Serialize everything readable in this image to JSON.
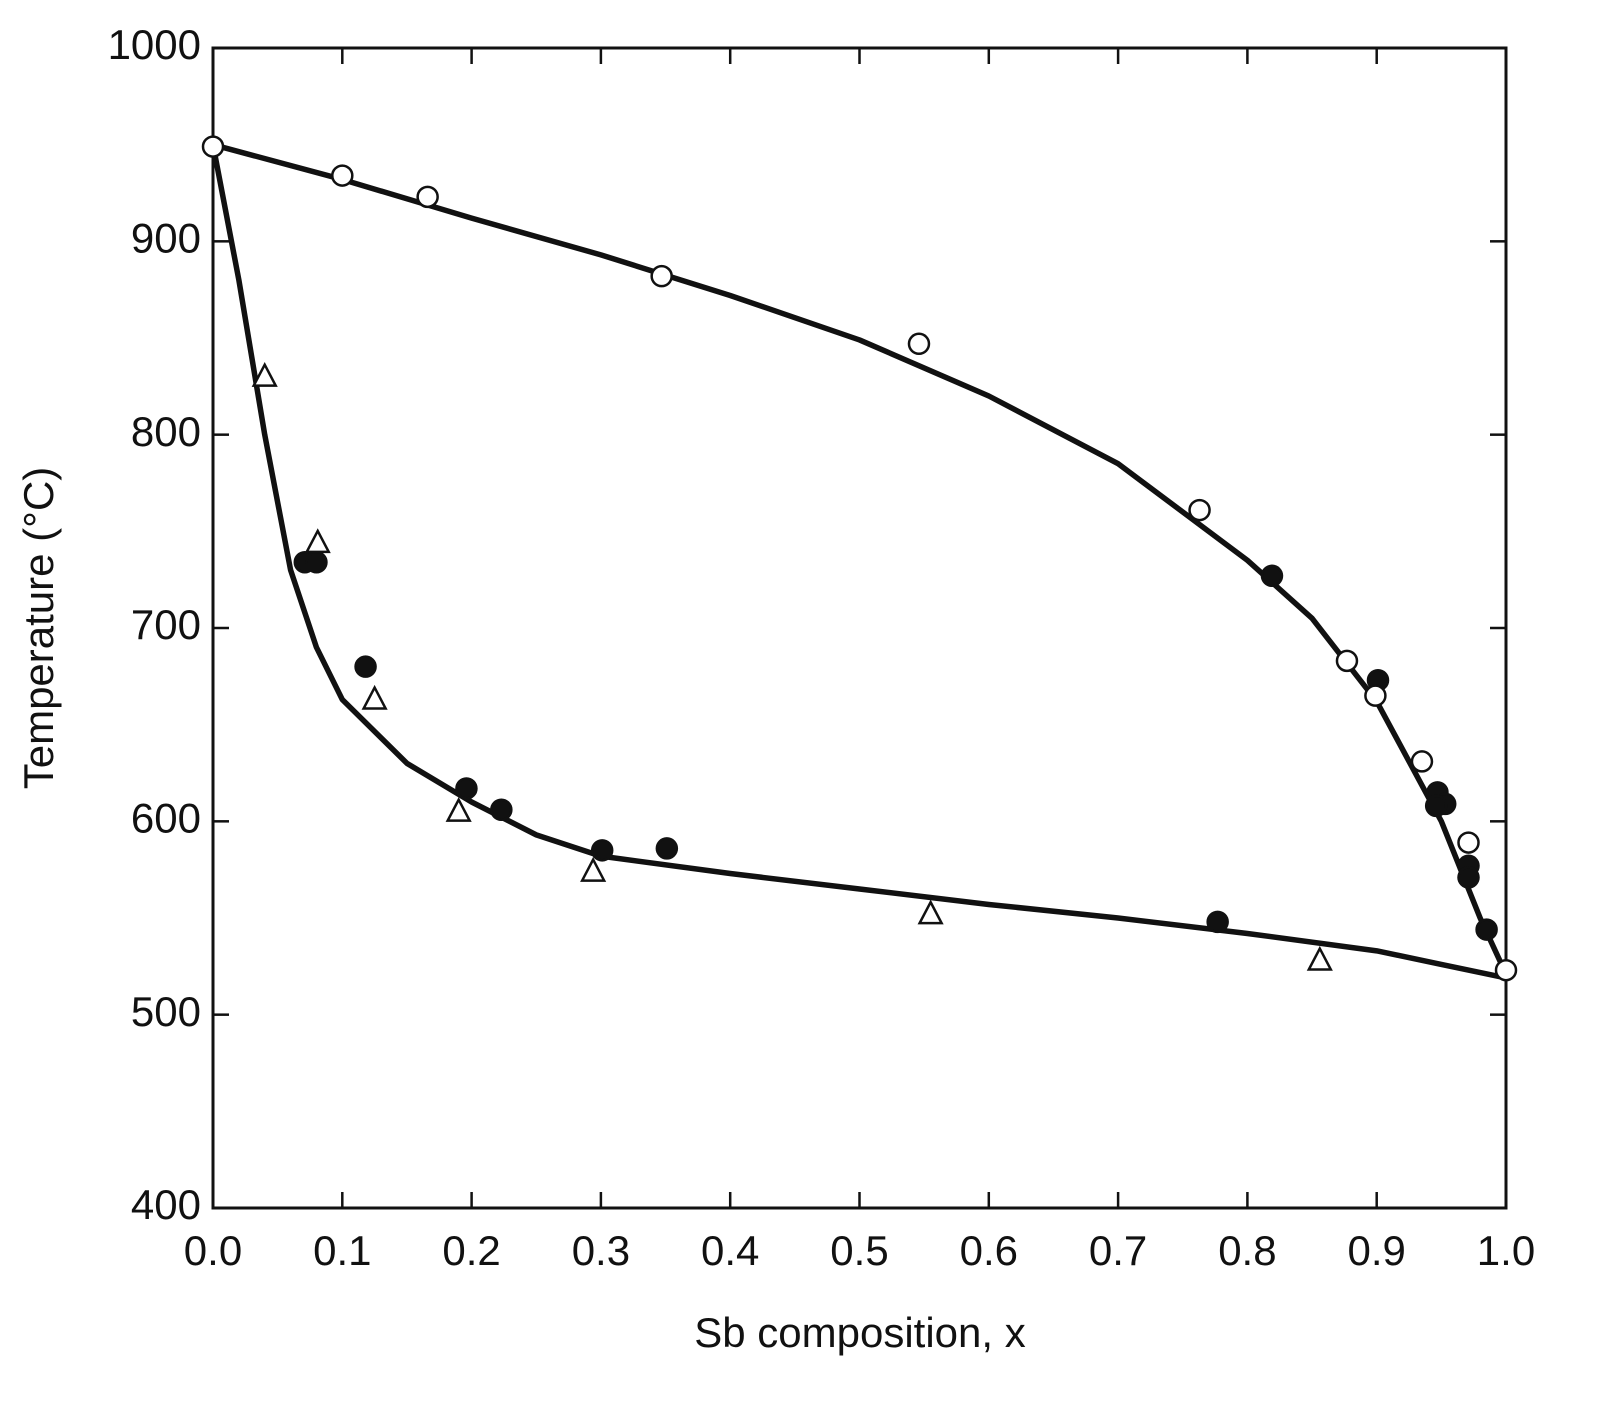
{
  "chart_data": {
    "type": "scatter",
    "xlabel": "Sb composition, x",
    "ylabel": "Temperature (°C)",
    "xlim": [
      0,
      1
    ],
    "ylim": [
      400,
      1000
    ],
    "xticks": [
      {
        "value": 0,
        "label": "0.0"
      },
      0.1,
      0.2,
      0.3,
      0.4,
      0.5,
      0.6,
      0.7,
      0.8,
      0.9,
      {
        "value": 1,
        "label": "1.0"
      }
    ],
    "yticks": [
      400,
      500,
      600,
      700,
      800,
      900,
      1000
    ],
    "color": "#111111",
    "series": [
      {
        "type": "line",
        "x": [
          0,
          0.1,
          0.2,
          0.3,
          0.4,
          0.5,
          0.6,
          0.7,
          0.8,
          0.85,
          0.9,
          0.95,
          0.98,
          1.0
        ],
        "values": [
          950,
          932,
          912,
          893,
          872,
          849,
          820,
          785,
          735,
          705,
          662,
          600,
          550,
          521
        ]
      },
      {
        "type": "line",
        "x": [
          0,
          0.02,
          0.04,
          0.06,
          0.08,
          0.1,
          0.15,
          0.2,
          0.25,
          0.3,
          0.4,
          0.5,
          0.6,
          0.7,
          0.8,
          0.9,
          0.95,
          1.0
        ],
        "values": [
          950,
          880,
          800,
          730,
          690,
          663,
          630,
          610,
          593,
          582,
          573,
          565,
          557,
          550,
          542,
          533,
          526,
          519
        ]
      },
      {
        "type": "scatter",
        "marker": "filled-circle",
        "x": [
          0.071,
          0.08,
          0.118,
          0.196,
          0.223,
          0.301,
          0.351,
          0.777,
          0.819,
          0.901,
          0.947,
          0.953,
          0.946,
          0.971,
          0.971,
          0.985
        ],
        "values": [
          734,
          734,
          680,
          617,
          606,
          585,
          586,
          548,
          727,
          673,
          615,
          609,
          608,
          577,
          571,
          544
        ]
      },
      {
        "type": "scatter",
        "marker": "open-circle",
        "x": [
          0.0,
          0.1,
          0.166,
          0.347,
          0.546,
          0.763,
          0.877,
          0.899,
          0.935,
          0.971,
          1.0
        ],
        "values": [
          949,
          934,
          923,
          882,
          847,
          761,
          683,
          665,
          631,
          589,
          523
        ]
      },
      {
        "type": "scatter",
        "marker": "triangle",
        "x": [
          0.04,
          0.081,
          0.125,
          0.19,
          0.294,
          0.555,
          0.856
        ],
        "values": [
          830,
          744,
          663,
          605,
          574,
          552,
          528
        ]
      }
    ]
  }
}
